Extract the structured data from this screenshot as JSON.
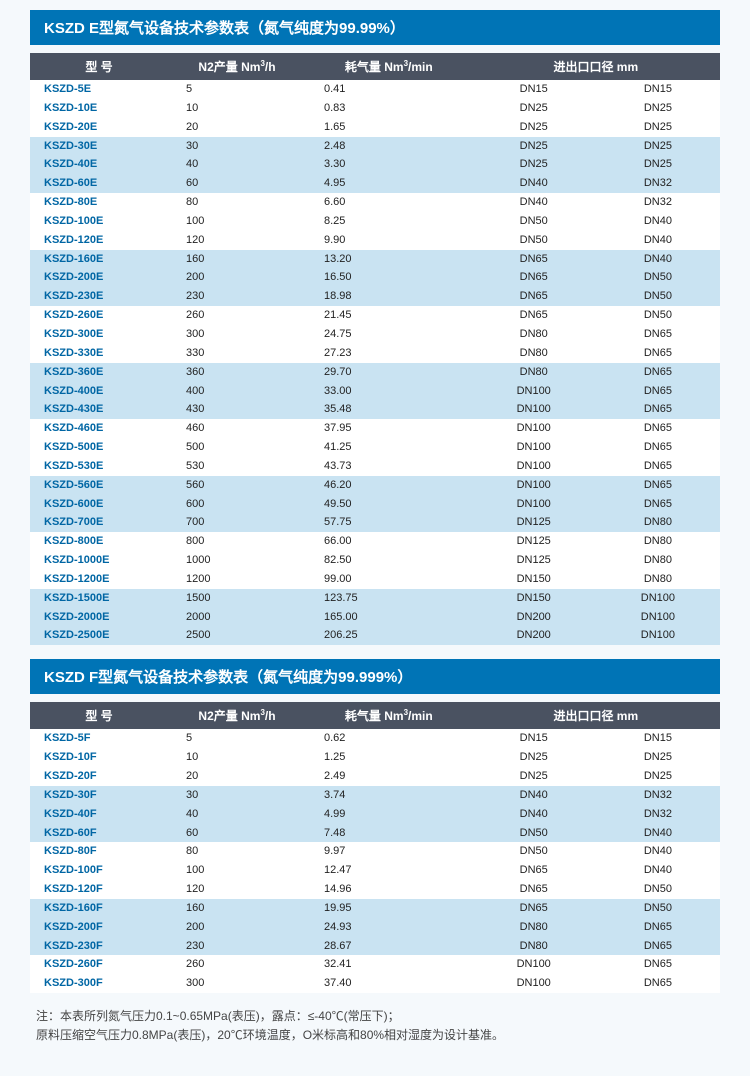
{
  "colors": {
    "title_bg": "#0074b6",
    "header_bg": "#4a5261",
    "band_bg": "#c9e3f2",
    "plain_bg": "#ffffff",
    "model_color": "#0066a4",
    "page_bg": "#f5f9fc"
  },
  "columns": {
    "widths_pct": [
      20,
      20,
      24,
      18,
      18
    ],
    "model": "型 号",
    "n2": "N2产量 Nm³/h",
    "air": "耗气量 Nm³/min",
    "dia": "进出口口径 mm"
  },
  "tableE": {
    "title": "KSZD E型氮气设备技术参数表（氮气纯度为99.99%）",
    "rows": [
      [
        "KSZD-5E",
        "5",
        "0.41",
        "DN15",
        "DN15"
      ],
      [
        "KSZD-10E",
        "10",
        "0.83",
        "DN25",
        "DN25"
      ],
      [
        "KSZD-20E",
        "20",
        "1.65",
        "DN25",
        "DN25"
      ],
      [
        "KSZD-30E",
        "30",
        "2.48",
        "DN25",
        "DN25"
      ],
      [
        "KSZD-40E",
        "40",
        "3.30",
        "DN25",
        "DN25"
      ],
      [
        "KSZD-60E",
        "60",
        "4.95",
        "DN40",
        "DN32"
      ],
      [
        "KSZD-80E",
        "80",
        "6.60",
        "DN40",
        "DN32"
      ],
      [
        "KSZD-100E",
        "100",
        "8.25",
        "DN50",
        "DN40"
      ],
      [
        "KSZD-120E",
        "120",
        "9.90",
        "DN50",
        "DN40"
      ],
      [
        "KSZD-160E",
        "160",
        "13.20",
        "DN65",
        "DN40"
      ],
      [
        "KSZD-200E",
        "200",
        "16.50",
        "DN65",
        "DN50"
      ],
      [
        "KSZD-230E",
        "230",
        "18.98",
        "DN65",
        "DN50"
      ],
      [
        "KSZD-260E",
        "260",
        "21.45",
        "DN65",
        "DN50"
      ],
      [
        "KSZD-300E",
        "300",
        "24.75",
        "DN80",
        "DN65"
      ],
      [
        "KSZD-330E",
        "330",
        "27.23",
        "DN80",
        "DN65"
      ],
      [
        "KSZD-360E",
        "360",
        "29.70",
        "DN80",
        "DN65"
      ],
      [
        "KSZD-400E",
        "400",
        "33.00",
        "DN100",
        "DN65"
      ],
      [
        "KSZD-430E",
        "430",
        "35.48",
        "DN100",
        "DN65"
      ],
      [
        "KSZD-460E",
        "460",
        "37.95",
        "DN100",
        "DN65"
      ],
      [
        "KSZD-500E",
        "500",
        "41.25",
        "DN100",
        "DN65"
      ],
      [
        "KSZD-530E",
        "530",
        "43.73",
        "DN100",
        "DN65"
      ],
      [
        "KSZD-560E",
        "560",
        "46.20",
        "DN100",
        "DN65"
      ],
      [
        "KSZD-600E",
        "600",
        "49.50",
        "DN100",
        "DN65"
      ],
      [
        "KSZD-700E",
        "700",
        "57.75",
        "DN125",
        "DN80"
      ],
      [
        "KSZD-800E",
        "800",
        "66.00",
        "DN125",
        "DN80"
      ],
      [
        "KSZD-1000E",
        "1000",
        "82.50",
        "DN125",
        "DN80"
      ],
      [
        "KSZD-1200E",
        "1200",
        "99.00",
        "DN150",
        "DN80"
      ],
      [
        "KSZD-1500E",
        "1500",
        "123.75",
        "DN150",
        "DN100"
      ],
      [
        "KSZD-2000E",
        "2000",
        "165.00",
        "DN200",
        "DN100"
      ],
      [
        "KSZD-2500E",
        "2500",
        "206.25",
        "DN200",
        "DN100"
      ]
    ],
    "bands": [
      [
        3,
        5
      ],
      [
        9,
        11
      ],
      [
        15,
        17
      ],
      [
        21,
        23
      ],
      [
        27,
        29
      ]
    ]
  },
  "tableF": {
    "title": "KSZD F型氮气设备技术参数表（氮气纯度为99.999%）",
    "rows": [
      [
        "KSZD-5F",
        "5",
        "0.62",
        "DN15",
        "DN15"
      ],
      [
        "KSZD-10F",
        "10",
        "1.25",
        "DN25",
        "DN25"
      ],
      [
        "KSZD-20F",
        "20",
        "2.49",
        "DN25",
        "DN25"
      ],
      [
        "KSZD-30F",
        "30",
        "3.74",
        "DN40",
        "DN32"
      ],
      [
        "KSZD-40F",
        "40",
        "4.99",
        "DN40",
        "DN32"
      ],
      [
        "KSZD-60F",
        "60",
        "7.48",
        "DN50",
        "DN40"
      ],
      [
        "KSZD-80F",
        "80",
        "9.97",
        "DN50",
        "DN40"
      ],
      [
        "KSZD-100F",
        "100",
        "12.47",
        "DN65",
        "DN40"
      ],
      [
        "KSZD-120F",
        "120",
        "14.96",
        "DN65",
        "DN50"
      ],
      [
        "KSZD-160F",
        "160",
        "19.95",
        "DN65",
        "DN50"
      ],
      [
        "KSZD-200F",
        "200",
        "24.93",
        "DN80",
        "DN65"
      ],
      [
        "KSZD-230F",
        "230",
        "28.67",
        "DN80",
        "DN65"
      ],
      [
        "KSZD-260F",
        "260",
        "32.41",
        "DN100",
        "DN65"
      ],
      [
        "KSZD-300F",
        "300",
        "37.40",
        "DN100",
        "DN65"
      ]
    ],
    "bands": [
      [
        3,
        5
      ],
      [
        9,
        11
      ]
    ]
  },
  "footnote": {
    "line1": "注：本表所列氮气压力0.1~0.65MPa(表压)，露点：≤-40℃(常压下)；",
    "line2": "原料压缩空气压力0.8MPa(表压)，20℃环境温度，O米标高和80%相对湿度为设计基准。"
  }
}
